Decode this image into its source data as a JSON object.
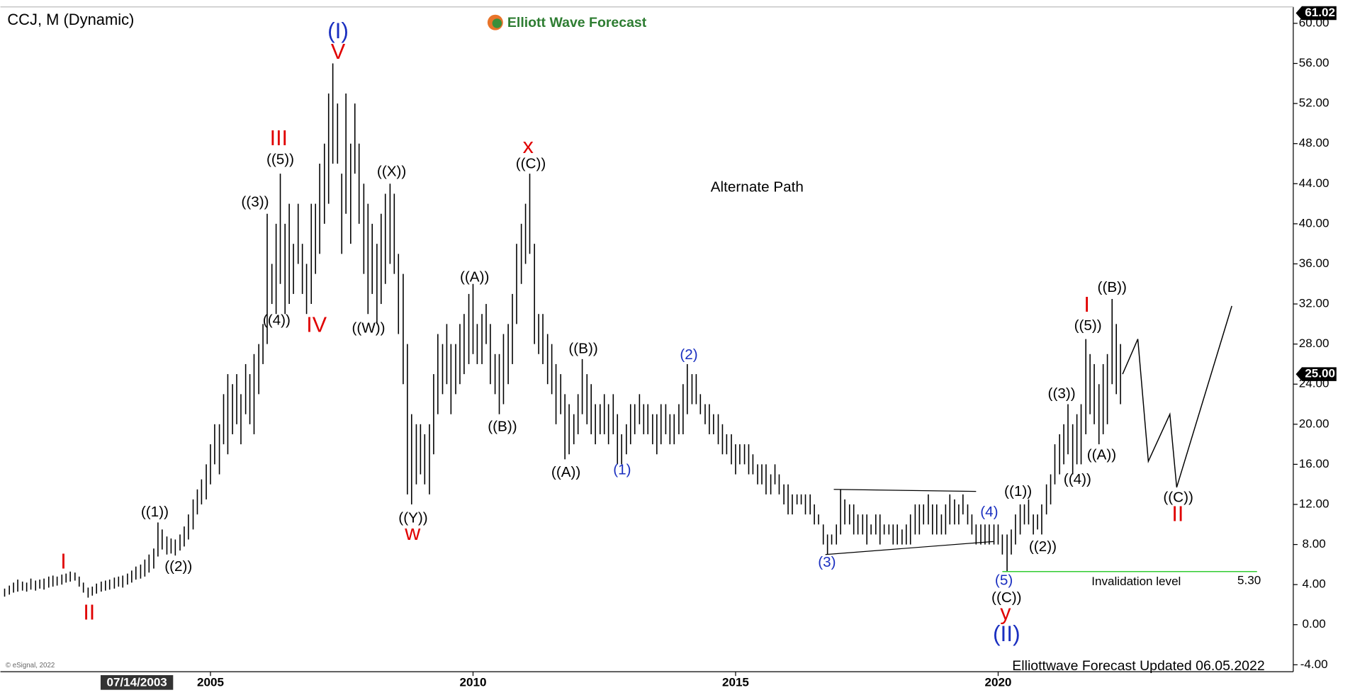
{
  "chart_data": {
    "type": "ohlc",
    "title": "CCJ, M (Dynamic)",
    "brand": "Elliott Wave Forecast",
    "footer": "Elliottwave Forecast Updated 06.05.2022",
    "copyright": "© eSignal, 2022",
    "cursor_date": "07/14/2003",
    "xlim": [
      2001,
      2025.62
    ],
    "ylim": [
      -4.69,
      61.64
    ],
    "xticks": [
      2005,
      2010,
      2015,
      2020
    ],
    "yticks": [
      {
        "value": -4,
        "label": "-4.00"
      },
      {
        "value": 0,
        "label": "0.00"
      },
      {
        "value": 4,
        "label": "4.00"
      },
      {
        "value": 8,
        "label": "8.00"
      },
      {
        "value": 12,
        "label": "12.00"
      },
      {
        "value": 16,
        "label": "16.00"
      },
      {
        "value": 20,
        "label": "20.00"
      },
      {
        "value": 24,
        "label": "24.00"
      },
      {
        "value": 28,
        "label": "28.00"
      },
      {
        "value": 32,
        "label": "32.00"
      },
      {
        "value": 36,
        "label": "36.00"
      },
      {
        "value": 40,
        "label": "40.00"
      },
      {
        "value": 44,
        "label": "44.00"
      },
      {
        "value": 48,
        "label": "48.00"
      },
      {
        "value": 52,
        "label": "52.00"
      },
      {
        "value": 56,
        "label": "56.00"
      },
      {
        "value": 60,
        "label": "60.00"
      }
    ],
    "price_markers": [
      {
        "value": 61.02,
        "label": "61.02"
      },
      {
        "value": 25,
        "label": "25.00"
      }
    ],
    "bars": {
      "color": "#000000",
      "x": [
        2001.08,
        2001.17,
        2001.25,
        2001.33,
        2001.42,
        2001.5,
        2001.58,
        2001.67,
        2001.75,
        2001.83,
        2001.92,
        2002,
        2002.08,
        2002.17,
        2002.25,
        2002.33,
        2002.42,
        2002.5,
        2002.58,
        2002.67,
        2002.75,
        2002.83,
        2002.92,
        2003,
        2003.08,
        2003.17,
        2003.25,
        2003.33,
        2003.42,
        2003.5,
        2003.58,
        2003.67,
        2003.75,
        2003.83,
        2003.92,
        2004,
        2004.08,
        2004.17,
        2004.25,
        2004.33,
        2004.42,
        2004.5,
        2004.58,
        2004.67,
        2004.75,
        2004.83,
        2004.92,
        2005,
        2005.08,
        2005.17,
        2005.25,
        2005.33,
        2005.42,
        2005.5,
        2005.58,
        2005.67,
        2005.75,
        2005.83,
        2005.92,
        2006,
        2006.08,
        2006.17,
        2006.25,
        2006.33,
        2006.42,
        2006.5,
        2006.58,
        2006.67,
        2006.75,
        2006.83,
        2006.92,
        2007,
        2007.08,
        2007.17,
        2007.25,
        2007.33,
        2007.42,
        2007.5,
        2007.58,
        2007.67,
        2007.75,
        2007.83,
        2007.92,
        2008,
        2008.08,
        2008.17,
        2008.25,
        2008.33,
        2008.42,
        2008.5,
        2008.58,
        2008.67,
        2008.75,
        2008.83,
        2008.92,
        2009,
        2009.08,
        2009.17,
        2009.25,
        2009.33,
        2009.42,
        2009.5,
        2009.58,
        2009.67,
        2009.75,
        2009.83,
        2009.92,
        2010,
        2010.08,
        2010.17,
        2010.25,
        2010.33,
        2010.42,
        2010.5,
        2010.58,
        2010.67,
        2010.75,
        2010.83,
        2010.92,
        2011,
        2011.08,
        2011.17,
        2011.25,
        2011.33,
        2011.42,
        2011.5,
        2011.58,
        2011.67,
        2011.75,
        2011.83,
        2011.92,
        2012,
        2012.08,
        2012.17,
        2012.25,
        2012.33,
        2012.42,
        2012.5,
        2012.58,
        2012.67,
        2012.75,
        2012.83,
        2012.92,
        2013,
        2013.08,
        2013.17,
        2013.25,
        2013.33,
        2013.42,
        2013.5,
        2013.58,
        2013.67,
        2013.75,
        2013.83,
        2013.92,
        2014,
        2014.08,
        2014.17,
        2014.25,
        2014.33,
        2014.42,
        2014.5,
        2014.58,
        2014.67,
        2014.75,
        2014.83,
        2014.92,
        2015,
        2015.08,
        2015.17,
        2015.25,
        2015.33,
        2015.42,
        2015.5,
        2015.58,
        2015.67,
        2015.75,
        2015.83,
        2015.92,
        2016,
        2016.08,
        2016.17,
        2016.25,
        2016.33,
        2016.42,
        2016.5,
        2016.58,
        2016.67,
        2016.75,
        2016.83,
        2016.92,
        2017,
        2017.08,
        2017.17,
        2017.25,
        2017.33,
        2017.42,
        2017.5,
        2017.58,
        2017.67,
        2017.75,
        2017.83,
        2017.92,
        2018,
        2018.08,
        2018.17,
        2018.25,
        2018.33,
        2018.42,
        2018.5,
        2018.58,
        2018.67,
        2018.75,
        2018.83,
        2018.92,
        2019,
        2019.08,
        2019.17,
        2019.25,
        2019.33,
        2019.42,
        2019.5,
        2019.58,
        2019.67,
        2019.75,
        2019.83,
        2019.92,
        2020,
        2020.08,
        2020.17,
        2020.25,
        2020.33,
        2020.42,
        2020.5,
        2020.58,
        2020.67,
        2020.75,
        2020.83,
        2020.92,
        2021,
        2021.08,
        2021.17,
        2021.25,
        2021.33,
        2021.42,
        2021.5,
        2021.58,
        2021.67,
        2021.75,
        2021.83,
        2021.92,
        2022,
        2022.08,
        2022.17,
        2022.25,
        2022.33
      ],
      "high": [
        3.6,
        3.9,
        4.2,
        4.5,
        4.3,
        4.2,
        4.6,
        4.4,
        4.5,
        4.6,
        4.8,
        4.9,
        4.8,
        5.0,
        5.1,
        5.3,
        5.2,
        4.8,
        4.2,
        3.7,
        3.8,
        4.1,
        4.3,
        4.4,
        4.5,
        4.7,
        4.8,
        4.9,
        5.1,
        5.4,
        5.8,
        6.0,
        6.5,
        7.0,
        7.6,
        10.2,
        9.5,
        8.8,
        8.6,
        8.5,
        9.0,
        9.8,
        11.0,
        12.5,
        13.5,
        14.5,
        16.0,
        18,
        20,
        20,
        23,
        25,
        24,
        25,
        23,
        26,
        25,
        27,
        28,
        30,
        41,
        36,
        40,
        45,
        40,
        42,
        38,
        42,
        38,
        36,
        42,
        42,
        46,
        48,
        53,
        56,
        52,
        45,
        53,
        48,
        52,
        48,
        44,
        42,
        40,
        38,
        41,
        43,
        44,
        43,
        37,
        35,
        28,
        21,
        20,
        20,
        19,
        20,
        25,
        29,
        28,
        30,
        28,
        28,
        30,
        31,
        33,
        34,
        30,
        31,
        32,
        30,
        27,
        27,
        29,
        30,
        33,
        38,
        40,
        42,
        45,
        38,
        31,
        31,
        29,
        28,
        26,
        25,
        23,
        22,
        21,
        23,
        26.5,
        25,
        24,
        22,
        22,
        23,
        22,
        23,
        21,
        19,
        20,
        22,
        22,
        23,
        22,
        22,
        21,
        21,
        22,
        22,
        21,
        21,
        22,
        24,
        26,
        25,
        25,
        23,
        22,
        22,
        21,
        21,
        20,
        19,
        19,
        18,
        18,
        18,
        18,
        17,
        16,
        16,
        16,
        15,
        16,
        15,
        14,
        14,
        13,
        13,
        13,
        13,
        13,
        12,
        11,
        10,
        9,
        9,
        10,
        13.5,
        12.5,
        12,
        12,
        11,
        11,
        11,
        10,
        11,
        11,
        10,
        10,
        10,
        10,
        9.5,
        10,
        11,
        12,
        12,
        12,
        13,
        12,
        12,
        11,
        12,
        13,
        12.5,
        12,
        13,
        12,
        11,
        10,
        10,
        10,
        10,
        10,
        10,
        9,
        9,
        9.5,
        11,
        12,
        12,
        12.5,
        11,
        11,
        12,
        14,
        15,
        18,
        19,
        20,
        22,
        20,
        21,
        22,
        28.5,
        27,
        26,
        24,
        26,
        27,
        32.5,
        30,
        28
      ],
      "low": [
        2.8,
        3.0,
        3.2,
        3.3,
        3.4,
        3.3,
        3.5,
        3.4,
        3.6,
        3.5,
        3.7,
        3.8,
        3.9,
        4.0,
        4.2,
        4.3,
        4.4,
        3.8,
        3.2,
        2.7,
        2.9,
        3.1,
        3.3,
        3.4,
        3.5,
        3.6,
        3.8,
        3.7,
        4.0,
        4.2,
        4.5,
        4.6,
        4.8,
        5.2,
        5.6,
        6.8,
        7.5,
        7.0,
        7.1,
        6.9,
        7.4,
        7.8,
        8.5,
        9.5,
        11.0,
        12.0,
        12.5,
        14,
        16,
        15,
        18,
        17,
        19,
        20,
        18,
        21,
        20,
        19,
        23,
        26,
        28,
        32,
        31,
        34,
        31,
        32,
        33,
        36,
        33,
        31,
        32,
        35,
        37,
        40,
        42,
        46,
        46,
        37,
        41,
        38,
        45,
        40,
        35,
        31,
        33,
        30,
        32,
        34,
        36,
        35,
        29,
        24,
        13,
        12,
        14,
        15,
        14,
        13,
        17,
        21,
        23,
        24,
        21,
        23,
        24,
        25,
        26,
        27,
        26,
        26,
        28,
        24,
        23,
        21,
        22,
        24,
        26,
        30,
        34,
        36,
        37,
        28,
        27,
        26,
        24,
        23,
        20,
        21,
        16.5,
        17,
        18,
        19,
        21,
        20,
        19,
        18,
        19,
        19,
        18,
        19,
        16,
        16,
        17,
        18,
        19,
        20,
        19,
        19,
        18,
        17,
        18,
        19,
        18,
        18,
        19,
        19,
        21,
        22,
        22,
        21,
        20,
        19,
        19,
        18,
        17,
        17,
        16,
        15,
        16,
        16,
        15,
        15,
        14,
        14,
        13,
        13,
        14,
        13,
        12,
        11,
        11,
        12,
        12,
        11,
        11,
        10,
        10,
        8,
        7,
        8,
        8,
        9,
        10,
        10,
        9,
        9,
        9,
        8,
        9,
        9,
        8,
        9,
        9,
        8,
        8,
        8,
        8,
        8,
        9,
        9,
        10,
        10,
        9,
        9,
        9,
        9,
        10,
        10,
        10,
        11,
        10,
        9,
        8,
        8,
        8,
        8,
        8,
        8,
        7,
        5.3,
        7,
        8,
        9,
        10,
        10,
        9,
        9.5,
        9,
        11,
        12,
        14,
        15,
        16,
        17,
        15,
        16,
        16,
        19,
        21,
        20,
        18,
        19,
        20,
        24,
        23,
        22
      ]
    },
    "projection": {
      "color": "#000000",
      "x": [
        2022.37,
        2022.66,
        2022.86,
        2023.27,
        2023.4,
        2024.45
      ],
      "y": [
        25,
        28.5,
        16.3,
        21,
        13.7,
        31.8
      ]
    },
    "triangle": [
      {
        "color": "#000000",
        "x": [
          2016.87,
          2019.58
        ],
        "y": [
          13.5,
          13.3
        ]
      },
      {
        "color": "#000000",
        "x": [
          2016.71,
          2019.91
        ],
        "y": [
          7,
          8.3
        ]
      }
    ],
    "invalidation": {
      "color": "#33cc33",
      "x": [
        2020.08,
        2024.93
      ],
      "y": [
        5.3,
        5.3
      ],
      "label": "Invalidation level",
      "value_label": "5.30",
      "label_x": 2022.63,
      "label_y": 4.26,
      "value_x": 2024.78
    },
    "annotations": [
      {
        "text": "I",
        "x": 2002.2,
        "y": 6.17,
        "color": "#e00000",
        "size": "medium"
      },
      {
        "text": "II",
        "x": 2002.69,
        "y": 1.09,
        "color": "#e00000",
        "size": "medium"
      },
      {
        "text": "((1))",
        "x": 2003.94,
        "y": 11.17,
        "color": "#000000",
        "size": "small"
      },
      {
        "text": "((2))",
        "x": 2004.39,
        "y": 5.74,
        "color": "#000000",
        "size": "small"
      },
      {
        "text": "((3))",
        "x": 2005.85,
        "y": 42.12,
        "color": "#000000",
        "size": "small"
      },
      {
        "text": "((4))",
        "x": 2006.26,
        "y": 30.31,
        "color": "#000000",
        "size": "small"
      },
      {
        "text": "((5))",
        "x": 2006.33,
        "y": 46.35,
        "color": "#000000",
        "size": "small"
      },
      {
        "text": "III",
        "x": 2006.3,
        "y": 48.4,
        "color": "#e00000",
        "size": "medium"
      },
      {
        "text": "IV",
        "x": 2007.02,
        "y": 29.79,
        "color": "#e00000",
        "size": "medium"
      },
      {
        "text": "V",
        "x": 2007.43,
        "y": 57.03,
        "color": "#e00000",
        "size": "medium"
      },
      {
        "text": "(I)",
        "x": 2007.43,
        "y": 59.1,
        "color": "#1a2fc0",
        "size": "large"
      },
      {
        "text": "((X))",
        "x": 2008.45,
        "y": 45.14,
        "color": "#000000",
        "size": "small"
      },
      {
        "text": "((W))",
        "x": 2008.01,
        "y": 29.53,
        "color": "#000000",
        "size": "small"
      },
      {
        "text": "((Y))",
        "x": 2008.86,
        "y": 10.57,
        "color": "#000000",
        "size": "small"
      },
      {
        "text": "w",
        "x": 2008.85,
        "y": 9.02,
        "color": "#e00000",
        "size": "medium"
      },
      {
        "text": "((A))",
        "x": 2010.03,
        "y": 34.6,
        "color": "#000000",
        "size": "small"
      },
      {
        "text": "((B))",
        "x": 2010.56,
        "y": 19.71,
        "color": "#000000",
        "size": "small"
      },
      {
        "text": "((C))",
        "x": 2011.1,
        "y": 45.91,
        "color": "#000000",
        "size": "small"
      },
      {
        "text": "x",
        "x": 2011.05,
        "y": 47.64,
        "color": "#e00000",
        "size": "medium"
      },
      {
        "text": "Alternate Path",
        "x": 2015.41,
        "y": 43.59,
        "color": "#000000",
        "size": "small"
      },
      {
        "text": "((B))",
        "x": 2012.1,
        "y": 27.47,
        "color": "#000000",
        "size": "small"
      },
      {
        "text": "((A))",
        "x": 2011.77,
        "y": 15.14,
        "color": "#000000",
        "size": "small"
      },
      {
        "text": "(1)",
        "x": 2012.84,
        "y": 15.4,
        "color": "#1a2fc0",
        "size": "small"
      },
      {
        "text": "(2)",
        "x": 2014.11,
        "y": 26.86,
        "color": "#1a2fc0",
        "size": "small"
      },
      {
        "text": "(3)",
        "x": 2016.74,
        "y": 6.17,
        "color": "#1a2fc0",
        "size": "small"
      },
      {
        "text": "(4)",
        "x": 2019.83,
        "y": 11.17,
        "color": "#1a2fc0",
        "size": "small"
      },
      {
        "text": "(5)",
        "x": 2020.11,
        "y": 4.36,
        "color": "#1a2fc0",
        "size": "small"
      },
      {
        "text": "((C))",
        "x": 2020.16,
        "y": 2.64,
        "color": "#000000",
        "size": "small"
      },
      {
        "text": "y",
        "x": 2020.14,
        "y": 1.09,
        "color": "#e00000",
        "size": "medium"
      },
      {
        "text": "(II)",
        "x": 2020.16,
        "y": -1.07,
        "color": "#1a2fc0",
        "size": "large"
      },
      {
        "text": "((1))",
        "x": 2020.38,
        "y": 13.24,
        "color": "#000000",
        "size": "small"
      },
      {
        "text": "((2))",
        "x": 2020.85,
        "y": 7.72,
        "color": "#000000",
        "size": "small"
      },
      {
        "text": "((3))",
        "x": 2021.21,
        "y": 22.98,
        "color": "#000000",
        "size": "small"
      },
      {
        "text": "((4))",
        "x": 2021.51,
        "y": 14.45,
        "color": "#000000",
        "size": "small"
      },
      {
        "text": "((5))",
        "x": 2021.71,
        "y": 29.79,
        "color": "#000000",
        "size": "small"
      },
      {
        "text": "I",
        "x": 2021.69,
        "y": 31.78,
        "color": "#e00000",
        "size": "medium"
      },
      {
        "text": "((B))",
        "x": 2022.17,
        "y": 33.59,
        "color": "#000000",
        "size": "small"
      },
      {
        "text": "((A))",
        "x": 2021.97,
        "y": 16.86,
        "color": "#000000",
        "size": "small"
      },
      {
        "text": "((C))",
        "x": 2023.43,
        "y": 12.64,
        "color": "#000000",
        "size": "small"
      },
      {
        "text": "II",
        "x": 2023.42,
        "y": 10.91,
        "color": "#e00000",
        "size": "medium"
      }
    ]
  }
}
